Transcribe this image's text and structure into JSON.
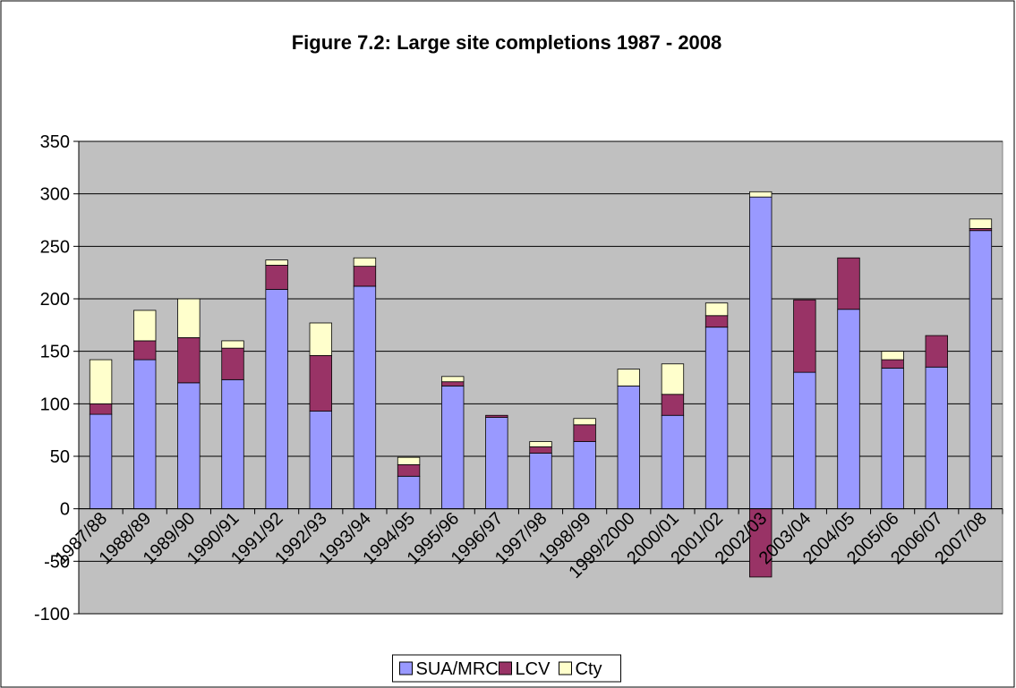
{
  "chart_data": {
    "type": "stacked_bar",
    "title": "Figure 7.2: Large site completions 1987 - 2008",
    "categories": [
      "1987/88",
      "1988/89",
      "1989/90",
      "1990/91",
      "1991/92",
      "1992/93",
      "1993/94",
      "1994/95",
      "1995/96",
      "1996/97",
      "1997/98",
      "1998/99",
      "1999/2000",
      "2000/01",
      "2001/02",
      "2002/03",
      "2003/04",
      "2004/05",
      "2005/06",
      "2006/07",
      "2007/08"
    ],
    "series": [
      {
        "name": "SUA/MRC",
        "color": "#9999ff",
        "values": [
          90,
          142,
          120,
          123,
          209,
          93,
          212,
          31,
          117,
          87,
          53,
          64,
          117,
          89,
          173,
          297,
          130,
          190,
          134,
          135,
          265
        ]
      },
      {
        "name": "LCV",
        "color": "#993366",
        "values": [
          10,
          18,
          43,
          30,
          23,
          53,
          19,
          11,
          4,
          2,
          6,
          16,
          0,
          20,
          11,
          -65,
          69,
          49,
          8,
          30,
          2
        ]
      },
      {
        "name": "Cty",
        "color": "#ffffcc",
        "values": [
          42,
          29,
          37,
          7,
          5,
          31,
          8,
          7,
          5,
          0,
          5,
          6,
          16,
          29,
          12,
          5,
          0,
          0,
          8,
          0,
          9
        ]
      }
    ],
    "ylim": [
      -100,
      350
    ],
    "yticks": [
      -100,
      -50,
      0,
      50,
      100,
      150,
      200,
      250,
      300,
      350
    ],
    "grid": true,
    "plot_background": "#c0c0c0",
    "legend": "bottom"
  }
}
